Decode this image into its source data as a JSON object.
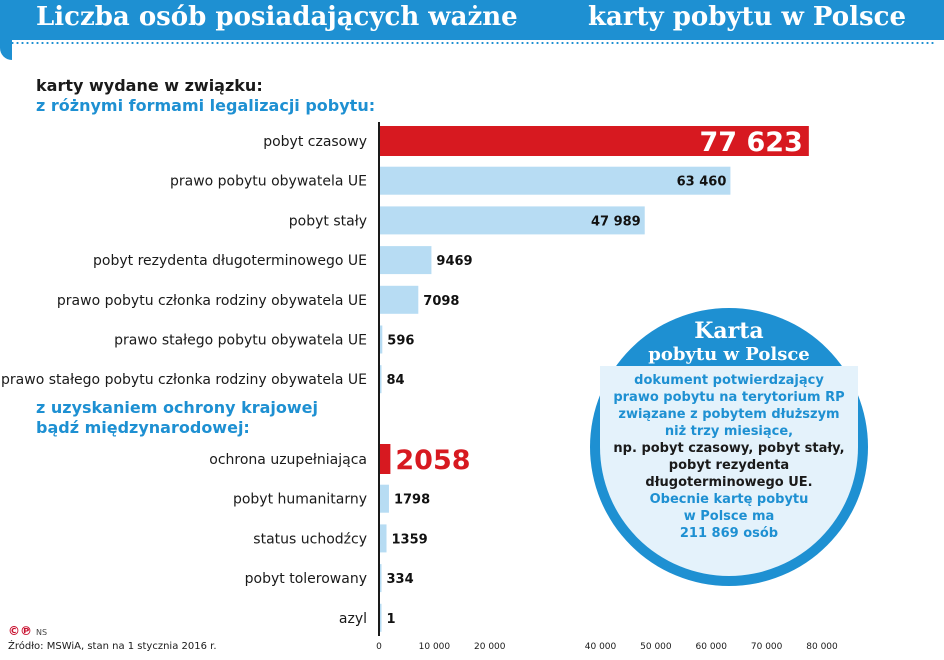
{
  "title": {
    "left": "Liczba osób posiadających ważne",
    "right": "karty pobytu w Polsce"
  },
  "sections": {
    "first_line1": "karty wydane w związku:",
    "first_line2": "z różnymi formami legalizacji pobytu:",
    "second_line1": "z uzyskaniem ochrony krajowej",
    "second_line2": "bądź międzynarodowej:"
  },
  "colors": {
    "highlight": "#d71920",
    "bar": "#b7dcf3",
    "accent": "#1e90d2"
  },
  "chart_data": {
    "type": "bar",
    "orientation": "horizontal",
    "xlim": [
      0,
      80000
    ],
    "xticks": [
      0,
      10000,
      20000,
      40000,
      50000,
      60000,
      70000,
      80000
    ],
    "xtick_labels": [
      "0",
      "10 000",
      "20 000",
      "40 000",
      "50 000",
      "60 000",
      "70 000",
      "80 000"
    ],
    "groups": [
      {
        "items": [
          {
            "label": "pobyt czasowy",
            "value": 77623,
            "value_label": "77 623",
            "highlight": true
          },
          {
            "label": "prawo pobytu obywatela UE",
            "value": 63460,
            "value_label": "63 460"
          },
          {
            "label": "pobyt stały",
            "value": 47989,
            "value_label": "47 989"
          },
          {
            "label": "pobyt rezydenta długoterminowego UE",
            "value": 9469,
            "value_label": "9469"
          },
          {
            "label": "prawo pobytu członka rodziny obywatela UE",
            "value": 7098,
            "value_label": "7098"
          },
          {
            "label": "prawo stałego pobytu obywatela UE",
            "value": 596,
            "value_label": "596"
          },
          {
            "label": "prawo stałego pobytu członka rodziny obywatela UE",
            "value": 84,
            "value_label": "84"
          }
        ]
      },
      {
        "items": [
          {
            "label": "ochrona uzupełniająca",
            "value": 2058,
            "value_label": "2058",
            "highlight": true
          },
          {
            "label": "pobyt humanitarny",
            "value": 1798,
            "value_label": "1798"
          },
          {
            "label": "status uchodźcy",
            "value": 1359,
            "value_label": "1359"
          },
          {
            "label": "pobyt tolerowany",
            "value": 334,
            "value_label": "334"
          },
          {
            "label": "azyl",
            "value": 1,
            "value_label": "1"
          }
        ]
      }
    ]
  },
  "callout": {
    "heading1": "Karta",
    "heading2": "pobytu w Polsce",
    "line1": "dokument potwierdzający",
    "line2": "prawo pobytu na terytorium RP",
    "line3": "związane z pobytem dłuższym",
    "line4": "niż trzy miesiące,",
    "line5": "np. pobyt czasowy, pobyt stały,",
    "line6": "pobyt rezydenta",
    "line7": "długoterminowego UE.",
    "line8": "Obecnie kartę pobytu",
    "line9": "w Polsce ma",
    "line10": "211 869 osób"
  },
  "footer": {
    "logo": "©℗",
    "author": "NS",
    "source": "Źródło: MSWiA, stan na 1 stycznia 2016 r."
  }
}
